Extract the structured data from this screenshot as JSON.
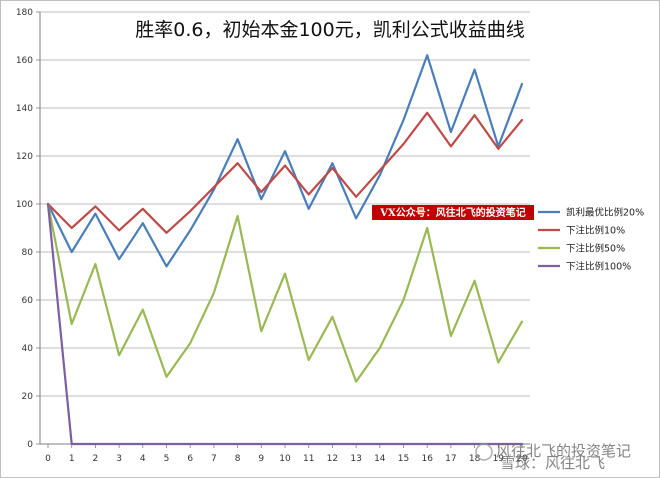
{
  "chart_data": {
    "type": "line",
    "title": "胜率0.6，初始本金100元，凯利公式收益曲线",
    "xlabel": "",
    "ylabel": "",
    "x": [
      0,
      1,
      2,
      3,
      4,
      5,
      6,
      7,
      8,
      9,
      10,
      11,
      12,
      13,
      14,
      15,
      16,
      17,
      18,
      19,
      20
    ],
    "ylim": [
      0,
      180
    ],
    "yticks": [
      0,
      20,
      40,
      60,
      80,
      100,
      120,
      140,
      160,
      180
    ],
    "grid": true,
    "legend_position": "right",
    "series": [
      {
        "name": "凯利最优比例20%",
        "color": "#4a7ebb",
        "values": [
          100,
          80,
          96,
          77,
          92,
          74,
          89,
          106,
          127,
          102,
          122,
          98,
          117,
          94,
          112,
          135,
          162,
          130,
          156,
          124,
          150
        ]
      },
      {
        "name": "下注比例10%",
        "color": "#be4b48",
        "values": [
          100,
          90,
          99,
          89,
          98,
          88,
          97,
          107,
          117,
          105,
          116,
          104,
          115,
          103,
          114,
          125,
          138,
          124,
          137,
          123,
          135
        ]
      },
      {
        "name": "下注比例50%",
        "color": "#98b954",
        "values": [
          100,
          50,
          75,
          37,
          56,
          28,
          42,
          63,
          95,
          47,
          71,
          35,
          53,
          26,
          40,
          60,
          90,
          45,
          68,
          34,
          51
        ]
      },
      {
        "name": "下注比例100%",
        "color": "#7d5fa0",
        "values": [
          100,
          0,
          0,
          0,
          0,
          0,
          0,
          0,
          0,
          0,
          0,
          0,
          0,
          0,
          0,
          0,
          0,
          0,
          0,
          0,
          0
        ]
      }
    ],
    "annotation": "VX公众号：风往北飞的投资笔记"
  },
  "watermark": {
    "text": "风往北飞的投资笔记",
    "brand": "雪球：风往北飞"
  },
  "colors": {
    "grid": "#a6a6a6",
    "banner": "#c00000"
  }
}
